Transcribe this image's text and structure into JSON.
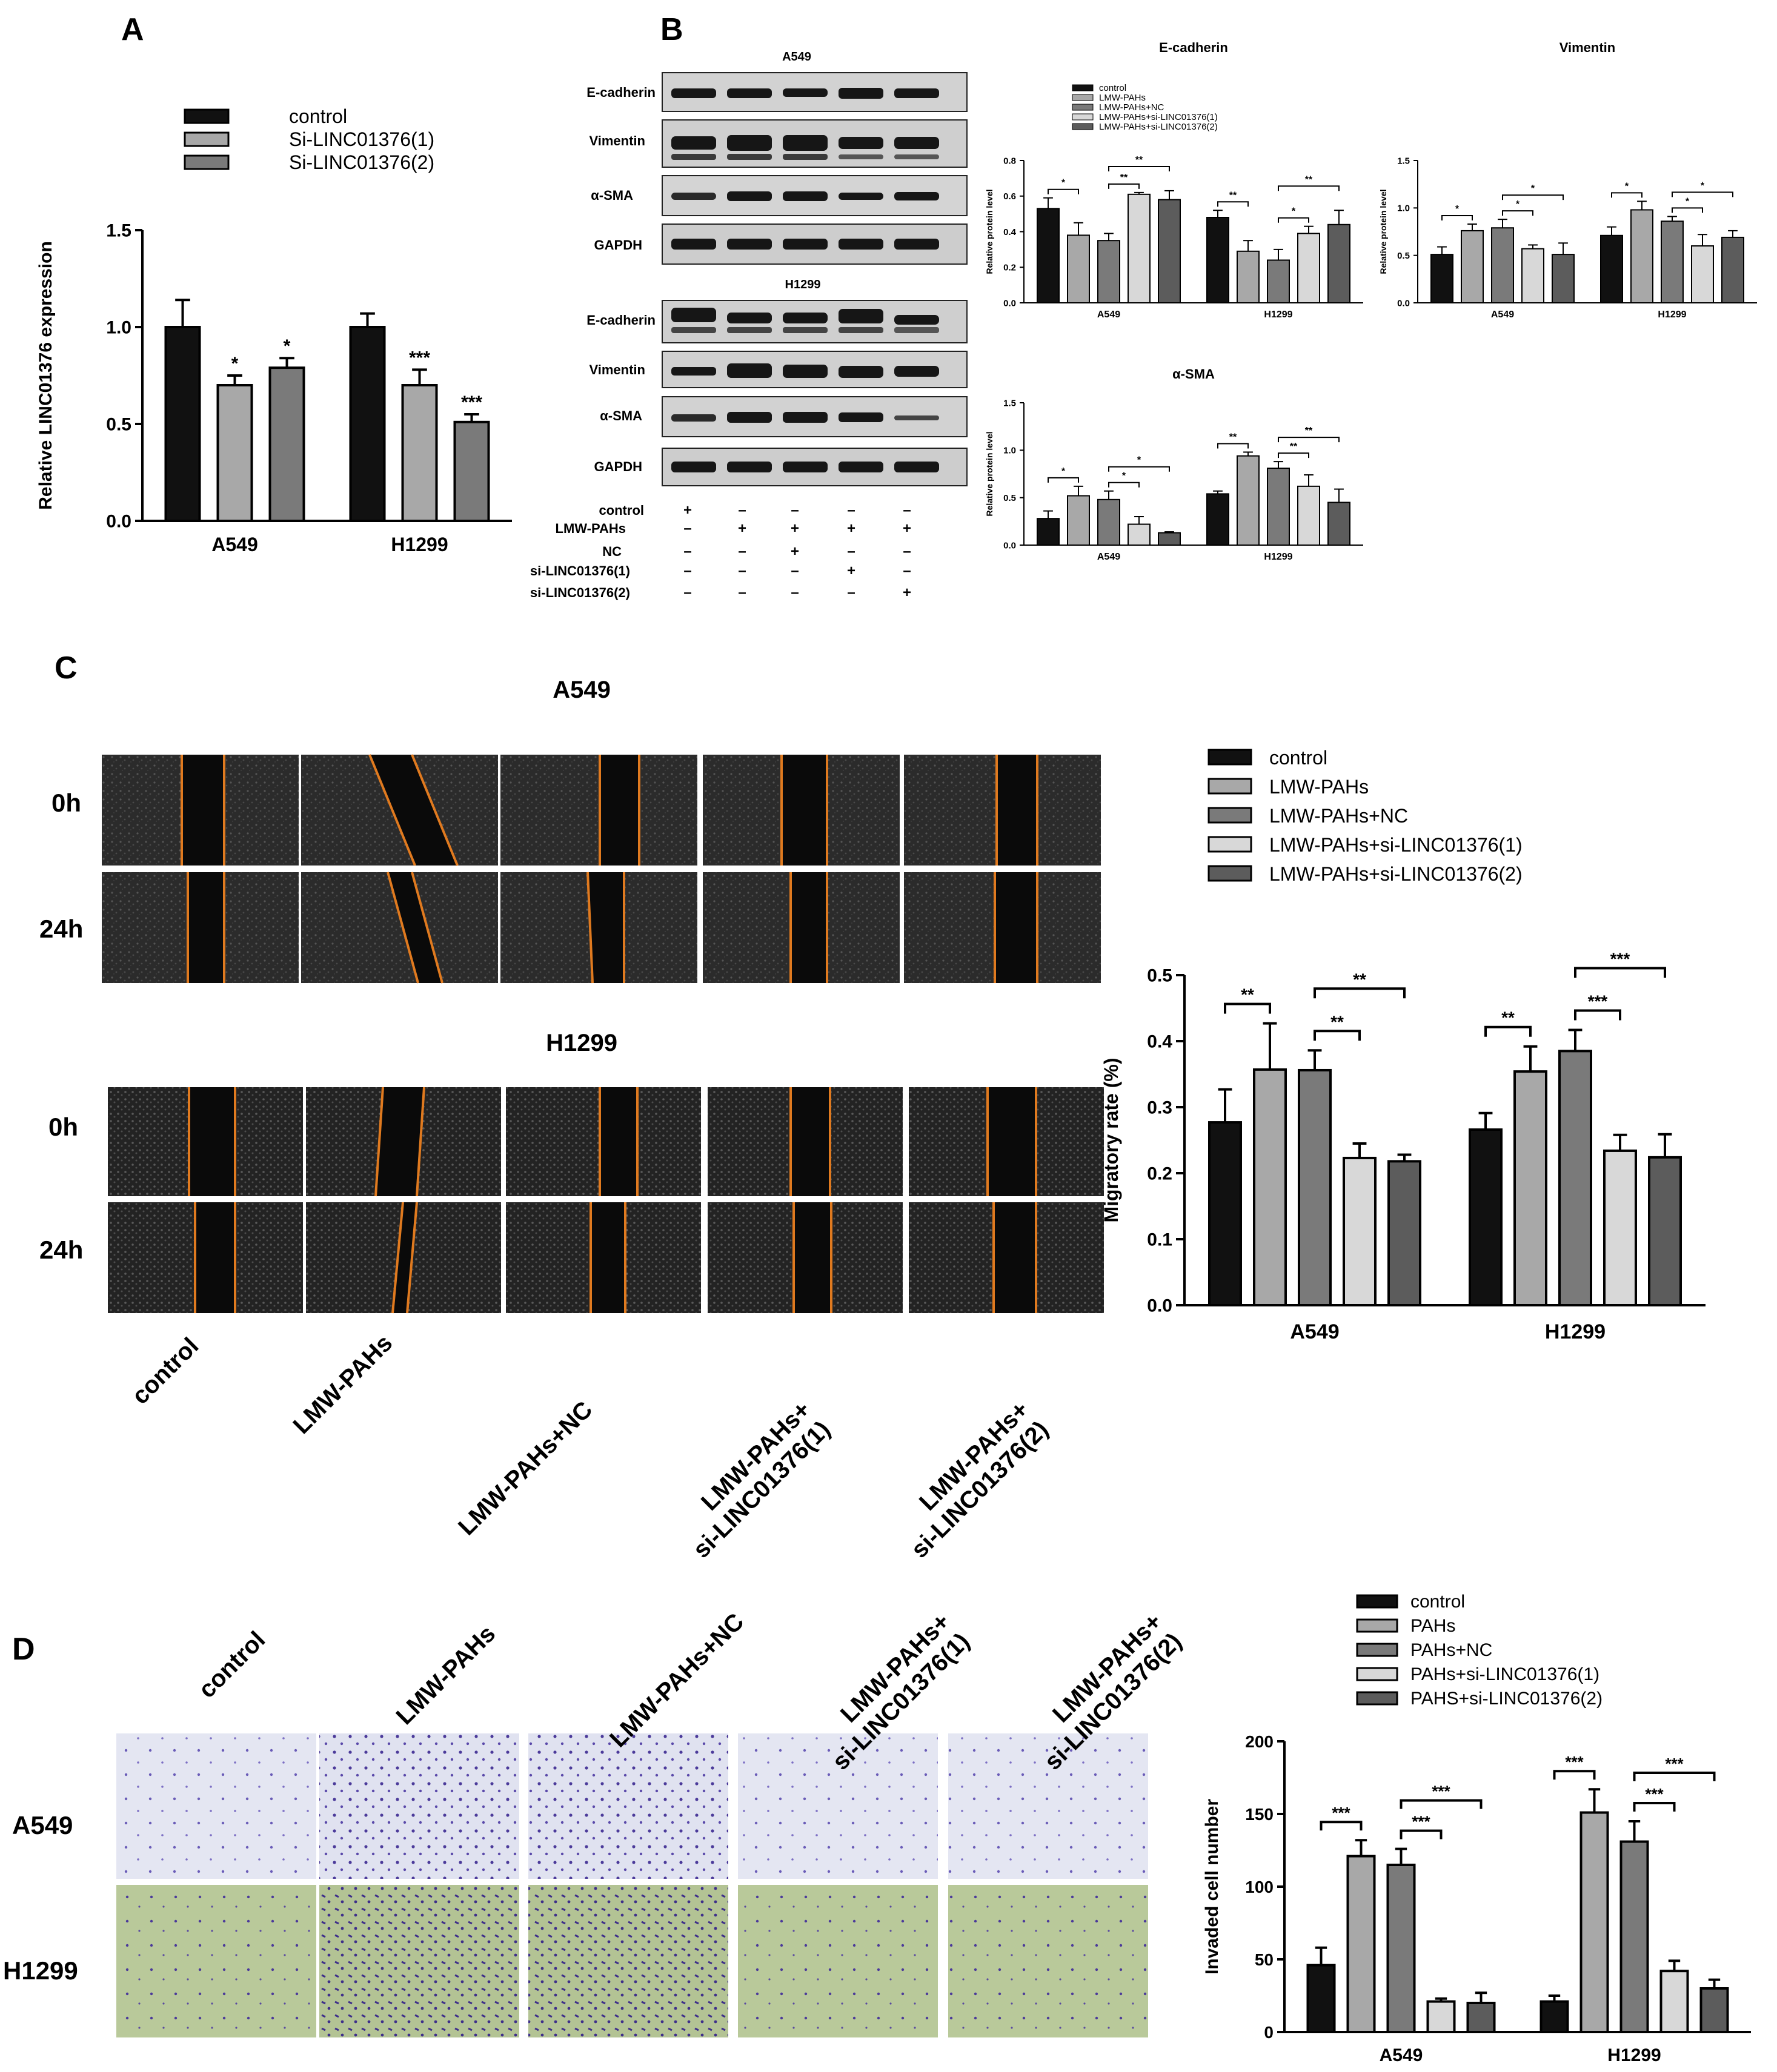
{
  "panels": {
    "A": "A",
    "B": "B",
    "C": "C",
    "D": "D"
  },
  "panel_b": {
    "blot_a549_title": "A549",
    "blot_h1299_title": "H1299",
    "blot_labels": [
      "E-cadherin",
      "Vimentin",
      "α-SMA",
      "GAPDH"
    ],
    "table_rows": [
      {
        "label": "control",
        "marks": [
          "+",
          "–",
          "–",
          "–",
          "–"
        ]
      },
      {
        "label": "LMW-PAHs",
        "marks": [
          "–",
          "+",
          "+",
          "+",
          "+"
        ]
      },
      {
        "label": "NC",
        "marks": [
          "–",
          "–",
          "+",
          "–",
          "–"
        ]
      },
      {
        "label": "si-LINC01376(1)",
        "marks": [
          "–",
          "–",
          "–",
          "+",
          "–"
        ]
      },
      {
        "label": "si-LINC01376(2)",
        "marks": [
          "–",
          "–",
          "–",
          "–",
          "+"
        ]
      }
    ]
  },
  "panel_c": {
    "title_a549": "A549",
    "title_h1299": "H1299",
    "time_labels": [
      "0h",
      "24h"
    ],
    "column_labels": [
      "control",
      "LMW-PAHs",
      "LMW-PAHs+NC",
      "LMW-PAHs+\nsi-LINC01376(1)",
      "LMW-PAHs+\nsi-LINC01376(2)"
    ]
  },
  "panel_d": {
    "row_labels": [
      "A549",
      "H1299"
    ],
    "column_labels": [
      "control",
      "LMW-PAHs",
      "LMW-PAHs+NC",
      "LMW-PAHs+\nsi-LINC01376(1)",
      "LMW-PAHs+\nsi-LINC01376(2)"
    ]
  },
  "colors": {
    "five_group": [
      "#111111",
      "#a8a8a8",
      "#7a7a7a",
      "#d8d8d8",
      "#5c5c5c"
    ],
    "three_group": [
      "#111111",
      "#a8a8a8",
      "#7a7a7a"
    ],
    "scratch_line": "#e07a1f",
    "transwell_a549_bg": "#e4e6f2",
    "transwell_h1299_bg": "#b9c99a",
    "stain": "#4b3a9a"
  },
  "chart_data": [
    {
      "id": "A",
      "type": "bar",
      "categories": [
        "A549",
        "H1299"
      ],
      "series": [
        {
          "name": "control",
          "values": [
            1.0,
            1.0
          ],
          "errors": [
            0.14,
            0.07
          ]
        },
        {
          "name": "Si-LINC01376(1)",
          "values": [
            0.7,
            0.7
          ],
          "errors": [
            0.05,
            0.08
          ]
        },
        {
          "name": "Si-LINC01376(2)",
          "values": [
            0.79,
            0.51
          ],
          "errors": [
            0.05,
            0.04
          ]
        }
      ],
      "significance": [
        [
          "*",
          "*"
        ],
        [
          "***",
          "***"
        ]
      ],
      "ylabel": "Relative LINC01376 expression",
      "ylim": [
        0,
        1.5
      ],
      "yticks": [
        "0.0",
        "0.5",
        "1.0",
        "1.5"
      ]
    },
    {
      "id": "B-Ecad",
      "type": "bar",
      "title": "E-cadherin",
      "categories": [
        "A549",
        "H1299"
      ],
      "series": [
        {
          "name": "control",
          "values": [
            0.53,
            0.48
          ],
          "errors": [
            0.06,
            0.04
          ]
        },
        {
          "name": "LMW-PAHs",
          "values": [
            0.38,
            0.29
          ],
          "errors": [
            0.07,
            0.06
          ]
        },
        {
          "name": "LMW-PAHs+NC",
          "values": [
            0.35,
            0.24
          ],
          "errors": [
            0.04,
            0.06
          ]
        },
        {
          "name": "LMW-PAHs+si-LINC01376(1)",
          "values": [
            0.61,
            0.39
          ],
          "errors": [
            0.01,
            0.04
          ]
        },
        {
          "name": "LMW-PAHs+si-LINC01376(2)",
          "values": [
            0.58,
            0.44
          ],
          "errors": [
            0.05,
            0.08
          ]
        }
      ],
      "brackets": [
        [
          "*",
          "**",
          "**"
        ],
        [
          "**",
          "*",
          "**"
        ]
      ],
      "ylabel": "Relative protein level",
      "ylim": [
        0,
        0.8
      ],
      "yticks": [
        "0.0",
        "0.2",
        "0.4",
        "0.6",
        "0.8"
      ]
    },
    {
      "id": "B-Vim",
      "type": "bar",
      "title": "Vimentin",
      "categories": [
        "A549",
        "H1299"
      ],
      "series": [
        {
          "name": "control",
          "values": [
            0.51,
            0.71
          ],
          "errors": [
            0.08,
            0.09
          ]
        },
        {
          "name": "LMW-PAHs",
          "values": [
            0.76,
            0.98
          ],
          "errors": [
            0.07,
            0.09
          ]
        },
        {
          "name": "LMW-PAHs+NC",
          "values": [
            0.79,
            0.86
          ],
          "errors": [
            0.09,
            0.05
          ]
        },
        {
          "name": "LMW-PAHs+si-LINC01376(1)",
          "values": [
            0.57,
            0.6
          ],
          "errors": [
            0.04,
            0.12
          ]
        },
        {
          "name": "LMW-PAHs+si-LINC01376(2)",
          "values": [
            0.51,
            0.69
          ],
          "errors": [
            0.12,
            0.07
          ]
        }
      ],
      "brackets": [
        [
          "*",
          "*",
          "*"
        ],
        [
          "*",
          "*",
          "*"
        ]
      ],
      "ylabel": "Relative protein level",
      "ylim": [
        0,
        1.5
      ],
      "yticks": [
        "0.0",
        "0.5",
        "1.0",
        "1.5"
      ]
    },
    {
      "id": "B-SMA",
      "type": "bar",
      "title": "α-SMA",
      "categories": [
        "A549",
        "H1299"
      ],
      "series": [
        {
          "name": "control",
          "values": [
            0.28,
            0.54
          ],
          "errors": [
            0.08,
            0.03
          ]
        },
        {
          "name": "LMW-PAHs",
          "values": [
            0.52,
            0.94
          ],
          "errors": [
            0.1,
            0.04
          ]
        },
        {
          "name": "LMW-PAHs+NC",
          "values": [
            0.48,
            0.81
          ],
          "errors": [
            0.09,
            0.07
          ]
        },
        {
          "name": "LMW-PAHs+si-LINC01376(1)",
          "values": [
            0.22,
            0.62
          ],
          "errors": [
            0.08,
            0.12
          ]
        },
        {
          "name": "LMW-PAHs+si-LINC01376(2)",
          "values": [
            0.13,
            0.45
          ],
          "errors": [
            0.01,
            0.14
          ]
        }
      ],
      "brackets": [
        [
          "*",
          "*",
          "*"
        ],
        [
          "**",
          "**",
          "**"
        ]
      ],
      "ylabel": "Relative protein level",
      "ylim": [
        0,
        1.5
      ],
      "yticks": [
        "0.0",
        "0.5",
        "1.0",
        "1.5"
      ]
    },
    {
      "id": "C",
      "type": "bar",
      "categories": [
        "A549",
        "H1299"
      ],
      "series": [
        {
          "name": "control",
          "values": [
            0.277,
            0.266
          ],
          "errors": [
            0.05,
            0.025
          ]
        },
        {
          "name": "LMW-PAHs",
          "values": [
            0.357,
            0.354
          ],
          "errors": [
            0.07,
            0.038
          ]
        },
        {
          "name": "LMW-PAHs+NC",
          "values": [
            0.356,
            0.385
          ],
          "errors": [
            0.03,
            0.032
          ]
        },
        {
          "name": "LMW-PAHs+si-LINC01376(1)",
          "values": [
            0.223,
            0.234
          ],
          "errors": [
            0.022,
            0.024
          ]
        },
        {
          "name": "LMW-PAHs+si-LINC01376(2)",
          "values": [
            0.218,
            0.224
          ],
          "errors": [
            0.01,
            0.035
          ]
        }
      ],
      "brackets": [
        [
          "**",
          "**",
          "**"
        ],
        [
          "**",
          "***",
          "***"
        ]
      ],
      "ylabel": "Migratory rate (%)",
      "ylim": [
        0,
        0.5
      ],
      "yticks": [
        "0.0",
        "0.1",
        "0.2",
        "0.3",
        "0.4",
        "0.5"
      ]
    },
    {
      "id": "D",
      "type": "bar",
      "categories": [
        "A549",
        "H1299"
      ],
      "series": [
        {
          "name": "control",
          "values": [
            46,
            21
          ],
          "errors": [
            12,
            4
          ]
        },
        {
          "name": "PAHs",
          "values": [
            121,
            151
          ],
          "errors": [
            11,
            16
          ]
        },
        {
          "name": "PAHs+NC",
          "values": [
            115,
            131
          ],
          "errors": [
            11,
            14
          ]
        },
        {
          "name": "PAHs+si-LINC01376(1)",
          "values": [
            21,
            42
          ],
          "errors": [
            2,
            7
          ]
        },
        {
          "name": "PAHS+si-LINC01376(2)",
          "values": [
            20,
            30
          ],
          "errors": [
            7,
            6
          ]
        }
      ],
      "brackets": [
        [
          "***",
          "***",
          "***"
        ],
        [
          "***",
          "***",
          "***"
        ]
      ],
      "ylabel": "Invaded cell number",
      "ylim": [
        0,
        200
      ],
      "yticks": [
        "0",
        "50",
        "100",
        "150",
        "200"
      ]
    }
  ]
}
